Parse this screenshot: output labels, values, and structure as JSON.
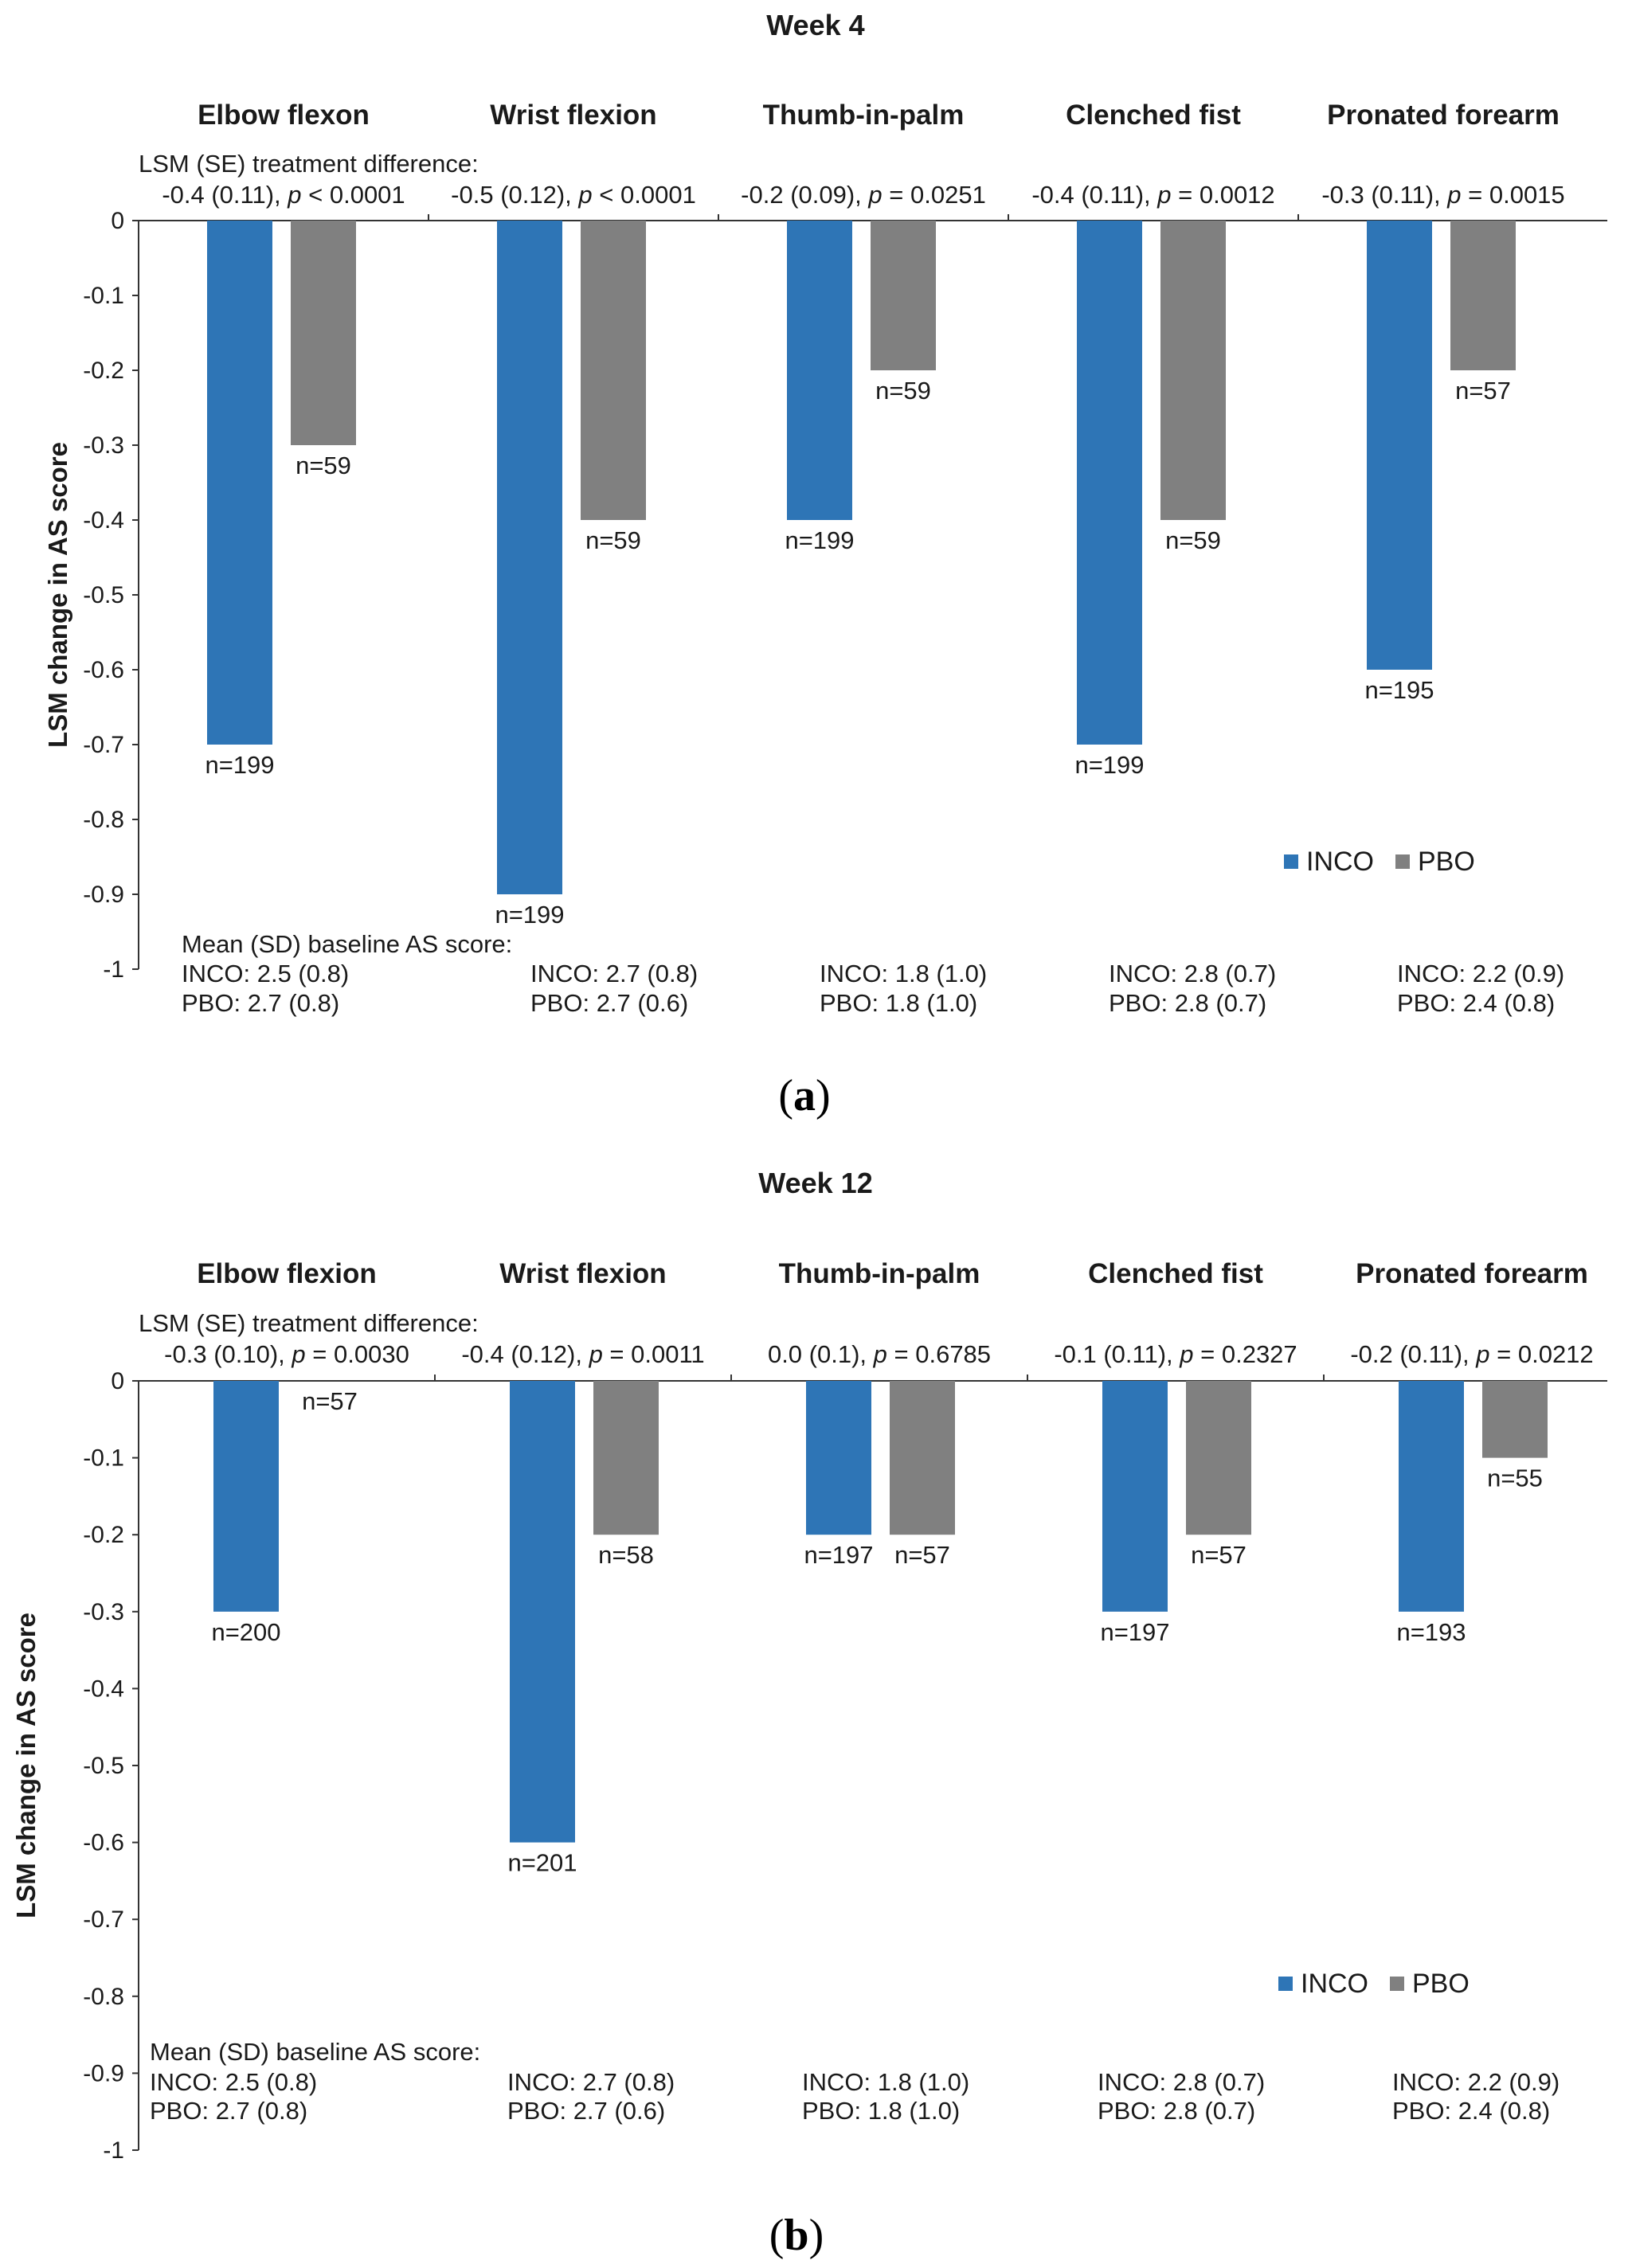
{
  "chart_data": [
    {
      "type": "bar",
      "panel_label": "a",
      "panel_letter": "a",
      "title": "Week 4",
      "ylabel": "LSM change in AS score",
      "ylim": [
        -1,
        0
      ],
      "yticks": [
        "0",
        "-0.1",
        "-0.2",
        "-0.3",
        "-0.4",
        "-0.5",
        "-0.6",
        "-0.7",
        "-0.8",
        "-0.9",
        "-1"
      ],
      "categories": [
        "Elbow flexon",
        "Wrist flexion",
        "Thumb-in-palm",
        "Clenched fist",
        "Pronated forearm"
      ],
      "series": [
        {
          "name": "INCO",
          "color": "#2e75b6",
          "values": [
            -0.7,
            -0.9,
            -0.4,
            -0.7,
            -0.6
          ],
          "n_labels": [
            "n=199",
            "n=199",
            "n=199",
            "n=199",
            "n=195"
          ]
        },
        {
          "name": "PBO",
          "color": "#808080",
          "values": [
            -0.3,
            -0.4,
            -0.2,
            -0.4,
            -0.2
          ],
          "n_labels": [
            "n=59",
            "n=59",
            "n=59",
            "n=59",
            "n=57"
          ]
        }
      ],
      "treatment_difference_header": "LSM (SE) treatment difference:",
      "treatment_differences": [
        {
          "est": "-0.4 (0.11), ",
          "p_label": "p",
          "p_value": " < 0.0001"
        },
        {
          "est": "-0.5 (0.12), ",
          "p_label": "p",
          "p_value": " < 0.0001"
        },
        {
          "est": "-0.2 (0.09), ",
          "p_label": "p",
          "p_value": " = 0.0251"
        },
        {
          "est": "-0.4 (0.11), ",
          "p_label": "p",
          "p_value": " = 0.0012"
        },
        {
          "est": "-0.3 (0.11), ",
          "p_label": "p",
          "p_value": " = 0.0015"
        }
      ],
      "baseline_header": "Mean (SD) baseline AS score:",
      "baseline": [
        {
          "inco": "INCO: 2.5 (0.8)",
          "pbo": "PBO: 2.7 (0.8)"
        },
        {
          "inco": "INCO: 2.7 (0.8)",
          "pbo": "PBO: 2.7 (0.6)"
        },
        {
          "inco": "INCO: 1.8 (1.0)",
          "pbo": "PBO: 1.8 (1.0)"
        },
        {
          "inco": "INCO: 2.8 (0.7)",
          "pbo": "PBO: 2.8 (0.7)"
        },
        {
          "inco": "INCO: 2.2 (0.9)",
          "pbo": "PBO: 2.4 (0.8)"
        }
      ],
      "legend": [
        "INCO",
        "PBO"
      ],
      "legend_position": "bottom-right"
    },
    {
      "type": "bar",
      "panel_label": "b",
      "panel_letter": "b",
      "title": "Week 12",
      "ylabel": "LSM change in AS score",
      "ylim": [
        -1,
        0
      ],
      "yticks": [
        "0",
        "-0.1",
        "-0.2",
        "-0.3",
        "-0.4",
        "-0.5",
        "-0.6",
        "-0.7",
        "-0.8",
        "-0.9",
        "-1"
      ],
      "categories": [
        "Elbow flexion",
        "Wrist flexion",
        "Thumb-in-palm",
        "Clenched fist",
        "Pronated forearm"
      ],
      "series": [
        {
          "name": "INCO",
          "color": "#2e75b6",
          "values": [
            -0.3,
            -0.6,
            -0.2,
            -0.3,
            -0.3
          ],
          "n_labels": [
            "n=200",
            "n=201",
            "n=197",
            "n=197",
            "n=193"
          ]
        },
        {
          "name": "PBO",
          "color": "#808080",
          "values": [
            0.0,
            -0.2,
            -0.2,
            -0.2,
            -0.1
          ],
          "n_labels": [
            "n=57",
            "n=58",
            "n=57",
            "n=57",
            "n=55"
          ]
        }
      ],
      "treatment_difference_header": "LSM (SE) treatment difference:",
      "treatment_differences": [
        {
          "est": "-0.3 (0.10), ",
          "p_label": "p",
          "p_value": " = 0.0030"
        },
        {
          "est": "-0.4 (0.12), ",
          "p_label": "p",
          "p_value": " = 0.0011"
        },
        {
          "est": "0.0 (0.1), ",
          "p_label": "p",
          "p_value": " = 0.6785"
        },
        {
          "est": "-0.1 (0.11), ",
          "p_label": "p",
          "p_value": " = 0.2327"
        },
        {
          "est": "-0.2 (0.11), ",
          "p_label": "p",
          "p_value": " = 0.0212"
        }
      ],
      "baseline_header": "Mean (SD) baseline AS score:",
      "baseline": [
        {
          "inco": "INCO: 2.5 (0.8)",
          "pbo": "PBO: 2.7 (0.8)"
        },
        {
          "inco": "INCO: 2.7 (0.8)",
          "pbo": "PBO: 2.7 (0.6)"
        },
        {
          "inco": "INCO: 1.8 (1.0)",
          "pbo": "PBO: 1.8 (1.0)"
        },
        {
          "inco": "INCO: 2.8 (0.7)",
          "pbo": "PBO: 2.8 (0.7)"
        },
        {
          "inco": "INCO: 2.2 (0.9)",
          "pbo": "PBO: 2.4 (0.8)"
        }
      ],
      "legend": [
        "INCO",
        "PBO"
      ],
      "legend_position": "bottom-right"
    }
  ]
}
